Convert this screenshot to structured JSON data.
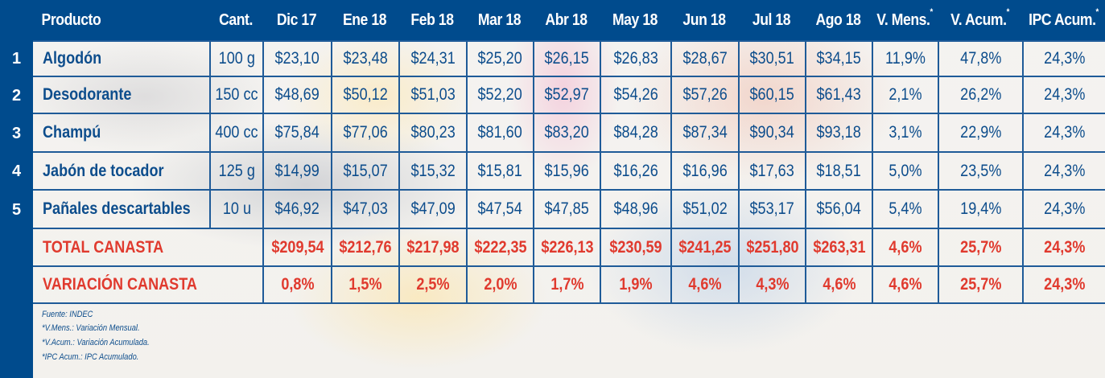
{
  "header": {
    "columns": [
      "Producto",
      "Cant.",
      "Dic 17",
      "Ene 18",
      "Feb 18",
      "Mar 18",
      "Abr 18",
      "May 18",
      "Jun 18",
      "Jul 18",
      "Ago 18",
      "V. Mens.",
      "V. Acum.",
      "IPC Acum."
    ],
    "asterisk": "*"
  },
  "rows": [
    {
      "num": "1",
      "producto": "Algodón",
      "cant": "100 g",
      "values": [
        "$23,10",
        "$23,48",
        "$24,31",
        "$25,20",
        "$26,15",
        "$26,83",
        "$28,67",
        "$30,51",
        "$34,15",
        "11,9%",
        "47,8%",
        "24,3%"
      ]
    },
    {
      "num": "2",
      "producto": "Desodorante",
      "cant": "150 cc",
      "values": [
        "$48,69",
        "$50,12",
        "$51,03",
        "$52,20",
        "$52,97",
        "$54,26",
        "$57,26",
        "$60,15",
        "$61,43",
        "2,1%",
        "26,2%",
        "24,3%"
      ]
    },
    {
      "num": "3",
      "producto": "Champú",
      "cant": "400 cc",
      "values": [
        "$75,84",
        "$77,06",
        "$80,23",
        "$81,60",
        "$83,20",
        "$84,28",
        "$87,34",
        "$90,34",
        "$93,18",
        "3,1%",
        "22,9%",
        "24,3%"
      ]
    },
    {
      "num": "4",
      "producto": "Jabón de tocador",
      "cant": "125 g",
      "values": [
        "$14,99",
        "$15,07",
        "$15,32",
        "$15,81",
        "$15,96",
        "$16,26",
        "$16,96",
        "$17,63",
        "$18,51",
        "5,0%",
        "23,5%",
        "24,3%"
      ]
    },
    {
      "num": "5",
      "producto": "Pañales descartables",
      "cant": "10 u",
      "values": [
        "$46,92",
        "$47,03",
        "$47,09",
        "$47,54",
        "$47,85",
        "$48,96",
        "$51,02",
        "$53,17",
        "$56,04",
        "5,4%",
        "19,4%",
        "24,3%"
      ]
    }
  ],
  "total": {
    "label": "TOTAL CANASTA",
    "values": [
      "$209,54",
      "$212,76",
      "$217,98",
      "$222,35",
      "$226,13",
      "$230,59",
      "$241,25",
      "$251,80",
      "$263,31",
      "4,6%",
      "25,7%",
      "24,3%"
    ]
  },
  "variacion": {
    "label": "VARIACIÓN CANASTA",
    "values": [
      "0,8%",
      "1,5%",
      "2,5%",
      "2,0%",
      "1,7%",
      "1,9%",
      "4,6%",
      "4,3%",
      "4,6%",
      "4,6%",
      "25,7%",
      "24,3%"
    ]
  },
  "footnotes": [
    "Fuente: INDEC",
    "*V.Mens.: Variación Mensual.",
    "*V.Acum.: Variación Acumulada.",
    "*IPC Acum.: IPC  Acumulado."
  ],
  "colors": {
    "header_bg": "#004b8d",
    "text_blue": "#0d4d8c",
    "text_red": "#e03a2e",
    "grid": "#1f5b98"
  }
}
